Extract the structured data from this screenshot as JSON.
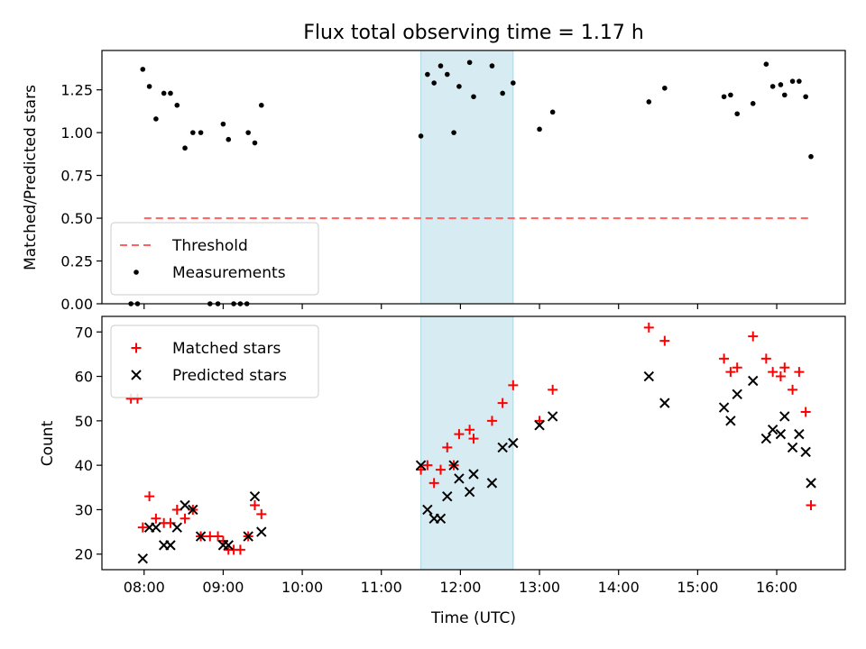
{
  "chart_data": [
    {
      "type": "scatter",
      "title": "Flux total observing time = 1.17 h",
      "ylabel": "Matched/Predicted stars",
      "xlabel": "",
      "ylim": [
        0,
        1.48
      ],
      "xlim_hours": [
        "07:28",
        "16:52"
      ],
      "yticks": [
        "0.00",
        "0.25",
        "0.50",
        "0.75",
        "1.00",
        "1.25"
      ],
      "grid": false,
      "legend_position": "lower-left",
      "highlight_span": {
        "start": "11:30",
        "end": "12:40",
        "color": "#add8e6"
      },
      "threshold": {
        "name": "Threshold",
        "value": 0.5,
        "from": "08:00",
        "to": "16:25",
        "color": "#ff6060",
        "style": "dashed"
      },
      "series": [
        {
          "name": "Measurements",
          "color": "#000000",
          "points": [
            [
              "07:50",
              0.0
            ],
            [
              "07:55",
              0.0
            ],
            [
              "07:59",
              1.37
            ],
            [
              "08:04",
              1.27
            ],
            [
              "08:09",
              1.08
            ],
            [
              "08:15",
              1.23
            ],
            [
              "08:20",
              1.23
            ],
            [
              "08:25",
              1.16
            ],
            [
              "08:31",
              0.91
            ],
            [
              "08:37",
              1.0
            ],
            [
              "08:43",
              1.0
            ],
            [
              "08:50",
              0.0
            ],
            [
              "08:56",
              0.0
            ],
            [
              "09:00",
              1.05
            ],
            [
              "09:04",
              0.96
            ],
            [
              "09:08",
              0.0
            ],
            [
              "09:13",
              0.0
            ],
            [
              "09:18",
              0.0
            ],
            [
              "09:19",
              1.0
            ],
            [
              "09:24",
              0.94
            ],
            [
              "09:29",
              1.16
            ],
            [
              "11:30",
              0.98
            ],
            [
              "11:35",
              1.34
            ],
            [
              "11:40",
              1.29
            ],
            [
              "11:45",
              1.39
            ],
            [
              "11:50",
              1.34
            ],
            [
              "11:55",
              1.0
            ],
            [
              "11:59",
              1.27
            ],
            [
              "12:07",
              1.41
            ],
            [
              "12:10",
              1.21
            ],
            [
              "12:24",
              1.39
            ],
            [
              "12:32",
              1.23
            ],
            [
              "12:40",
              1.29
            ],
            [
              "13:00",
              1.02
            ],
            [
              "13:10",
              1.12
            ],
            [
              "14:23",
              1.18
            ],
            [
              "14:35",
              1.26
            ],
            [
              "15:20",
              1.21
            ],
            [
              "15:25",
              1.22
            ],
            [
              "15:30",
              1.11
            ],
            [
              "15:42",
              1.17
            ],
            [
              "15:52",
              1.4
            ],
            [
              "15:57",
              1.27
            ],
            [
              "16:03",
              1.28
            ],
            [
              "16:06",
              1.22
            ],
            [
              "16:12",
              1.3
            ],
            [
              "16:17",
              1.3
            ],
            [
              "16:22",
              1.21
            ],
            [
              "16:26",
              0.86
            ]
          ]
        }
      ]
    },
    {
      "type": "scatter",
      "title": "",
      "ylabel": "Count",
      "xlabel": "Time (UTC)",
      "ylim": [
        16.5,
        73.5
      ],
      "xlim_hours": [
        "07:28",
        "16:52"
      ],
      "yticks": [
        "20",
        "30",
        "40",
        "50",
        "60",
        "70"
      ],
      "xticks": [
        "08:00",
        "09:00",
        "10:00",
        "11:00",
        "12:00",
        "13:00",
        "14:00",
        "15:00",
        "16:00"
      ],
      "grid": false,
      "legend_position": "upper-left",
      "highlight_span": {
        "start": "11:30",
        "end": "12:40",
        "color": "#add8e6"
      },
      "series": [
        {
          "name": "Matched stars",
          "marker": "plus",
          "color": "#ff0000",
          "points": [
            [
              "07:50",
              55
            ],
            [
              "07:55",
              55
            ],
            [
              "07:59",
              26
            ],
            [
              "08:04",
              33
            ],
            [
              "08:09",
              28
            ],
            [
              "08:15",
              27
            ],
            [
              "08:20",
              27
            ],
            [
              "08:25",
              30
            ],
            [
              "08:31",
              28
            ],
            [
              "08:37",
              30
            ],
            [
              "08:43",
              24
            ],
            [
              "08:50",
              24
            ],
            [
              "08:56",
              24
            ],
            [
              "09:00",
              23
            ],
            [
              "09:04",
              21
            ],
            [
              "09:08",
              21
            ],
            [
              "09:13",
              21
            ],
            [
              "09:19",
              24
            ],
            [
              "09:24",
              31
            ],
            [
              "09:29",
              29
            ],
            [
              "11:30",
              39
            ],
            [
              "11:35",
              40
            ],
            [
              "11:40",
              36
            ],
            [
              "11:45",
              39
            ],
            [
              "11:50",
              44
            ],
            [
              "11:55",
              40
            ],
            [
              "11:59",
              47
            ],
            [
              "12:07",
              48
            ],
            [
              "12:10",
              46
            ],
            [
              "12:24",
              50
            ],
            [
              "12:32",
              54
            ],
            [
              "12:40",
              58
            ],
            [
              "13:00",
              50
            ],
            [
              "13:10",
              57
            ],
            [
              "14:23",
              71
            ],
            [
              "14:35",
              68
            ],
            [
              "15:20",
              64
            ],
            [
              "15:25",
              61
            ],
            [
              "15:30",
              62
            ],
            [
              "15:42",
              69
            ],
            [
              "15:52",
              64
            ],
            [
              "15:57",
              61
            ],
            [
              "16:03",
              60
            ],
            [
              "16:06",
              62
            ],
            [
              "16:12",
              57
            ],
            [
              "16:17",
              61
            ],
            [
              "16:22",
              52
            ],
            [
              "16:26",
              31
            ]
          ]
        },
        {
          "name": "Predicted stars",
          "marker": "cross",
          "color": "#000000",
          "points": [
            [
              "07:59",
              19
            ],
            [
              "08:04",
              26
            ],
            [
              "08:09",
              26
            ],
            [
              "08:15",
              22
            ],
            [
              "08:20",
              22
            ],
            [
              "08:25",
              26
            ],
            [
              "08:31",
              31
            ],
            [
              "08:37",
              30
            ],
            [
              "08:43",
              24
            ],
            [
              "09:00",
              22
            ],
            [
              "09:04",
              22
            ],
            [
              "09:19",
              24
            ],
            [
              "09:24",
              33
            ],
            [
              "09:29",
              25
            ],
            [
              "11:30",
              40
            ],
            [
              "11:35",
              30
            ],
            [
              "11:40",
              28
            ],
            [
              "11:45",
              28
            ],
            [
              "11:50",
              33
            ],
            [
              "11:55",
              40
            ],
            [
              "11:59",
              37
            ],
            [
              "12:07",
              34
            ],
            [
              "12:10",
              38
            ],
            [
              "12:24",
              36
            ],
            [
              "12:32",
              44
            ],
            [
              "12:40",
              45
            ],
            [
              "13:00",
              49
            ],
            [
              "13:10",
              51
            ],
            [
              "14:23",
              60
            ],
            [
              "14:35",
              54
            ],
            [
              "15:20",
              53
            ],
            [
              "15:25",
              50
            ],
            [
              "15:30",
              56
            ],
            [
              "15:42",
              59
            ],
            [
              "15:52",
              46
            ],
            [
              "15:57",
              48
            ],
            [
              "16:03",
              47
            ],
            [
              "16:06",
              51
            ],
            [
              "16:12",
              44
            ],
            [
              "16:17",
              47
            ],
            [
              "16:22",
              43
            ],
            [
              "16:26",
              36
            ]
          ]
        }
      ]
    }
  ]
}
